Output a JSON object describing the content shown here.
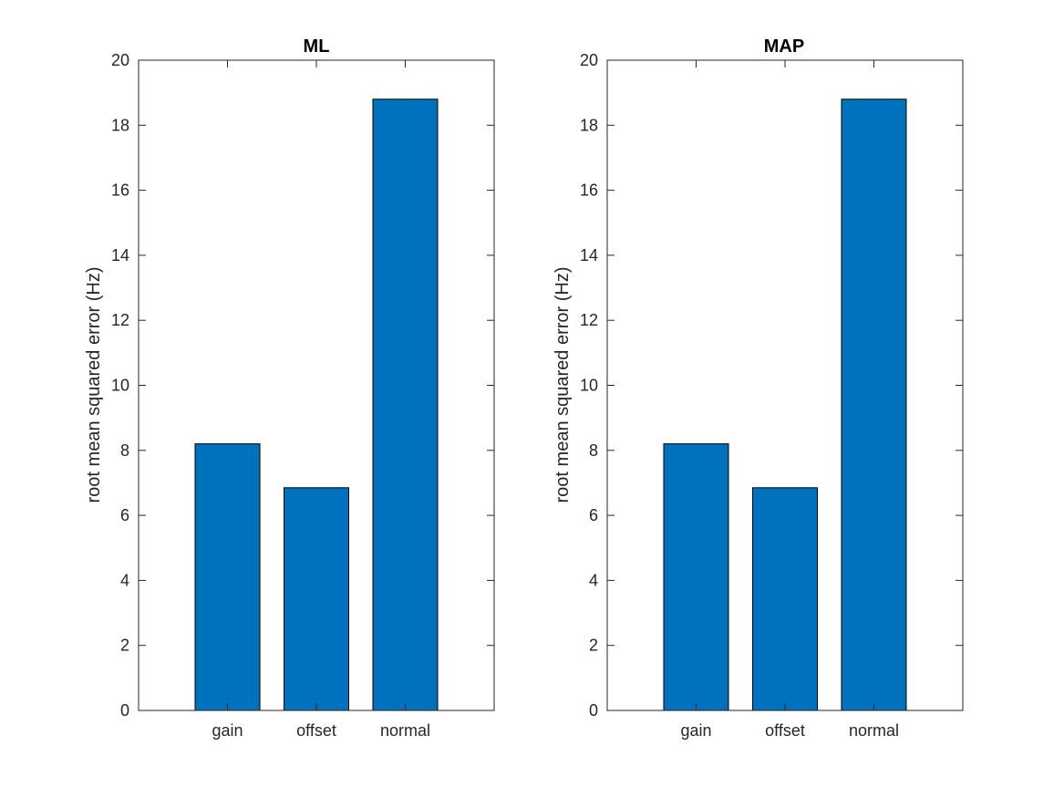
{
  "chart_data": [
    {
      "type": "bar",
      "title": "ML",
      "categories": [
        "gain",
        "offset",
        "normal"
      ],
      "values": [
        8.2,
        6.85,
        18.8
      ],
      "xlabel": "",
      "ylabel": "root mean squared error (Hz)",
      "ylim": [
        0,
        20
      ],
      "yticks": [
        "0",
        "2",
        "4",
        "6",
        "8",
        "10",
        "12",
        "14",
        "16",
        "18",
        "20"
      ],
      "grid": false,
      "bar_color": "#0072BD"
    },
    {
      "type": "bar",
      "title": "MAP",
      "categories": [
        "gain",
        "offset",
        "normal"
      ],
      "values": [
        8.2,
        6.85,
        18.8
      ],
      "xlabel": "",
      "ylabel": "root mean squared error (Hz)",
      "ylim": [
        0,
        20
      ],
      "yticks": [
        "0",
        "2",
        "4",
        "6",
        "8",
        "10",
        "12",
        "14",
        "16",
        "18",
        "20"
      ],
      "grid": false,
      "bar_color": "#0072BD"
    }
  ]
}
